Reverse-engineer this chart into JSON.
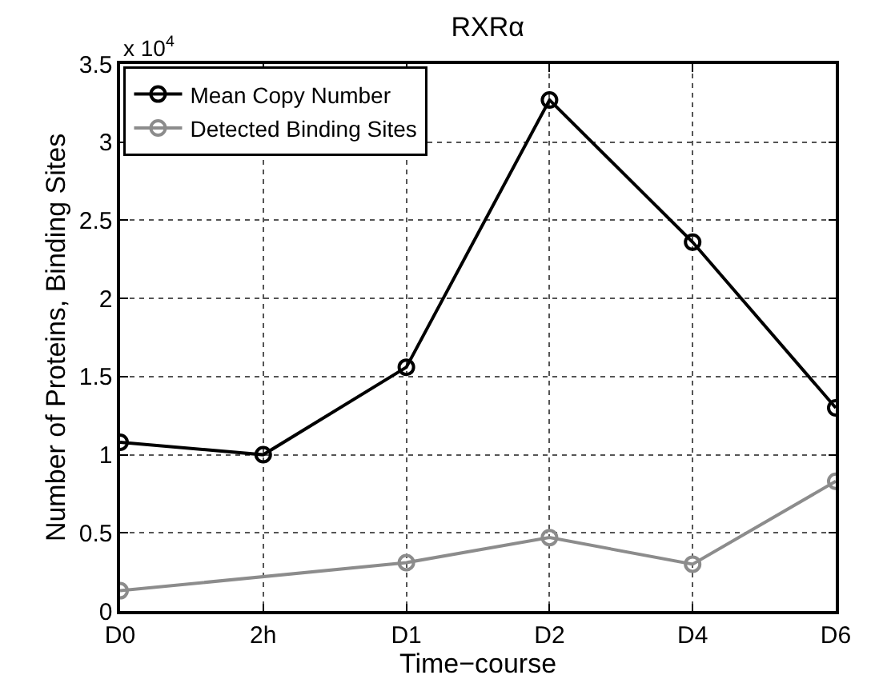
{
  "chart_data": {
    "type": "line",
    "title": "RXRα",
    "xlabel": "Time−course",
    "ylabel": "Number of Proteins, Binding Sites",
    "categories": [
      "D0",
      "2h",
      "D1",
      "D2",
      "D4",
      "D6"
    ],
    "series": [
      {
        "name": "Mean Copy Number",
        "color": "#000000",
        "values": [
          1.08,
          1.0,
          1.56,
          3.27,
          2.36,
          1.3
        ]
      },
      {
        "name": "Detected Binding Sites",
        "color": "#8c8c8c",
        "values": [
          0.13,
          null,
          0.31,
          0.47,
          0.3,
          0.83
        ]
      }
    ],
    "ylim": [
      0,
      3.5
    ],
    "yticks": [
      0,
      0.5,
      1,
      1.5,
      2,
      2.5,
      3,
      3.5
    ],
    "annotations": [
      "x 10$^{4}$"
    ],
    "grid": true,
    "legend": "top left",
    "marker": "circle",
    "line_style": "solid"
  }
}
